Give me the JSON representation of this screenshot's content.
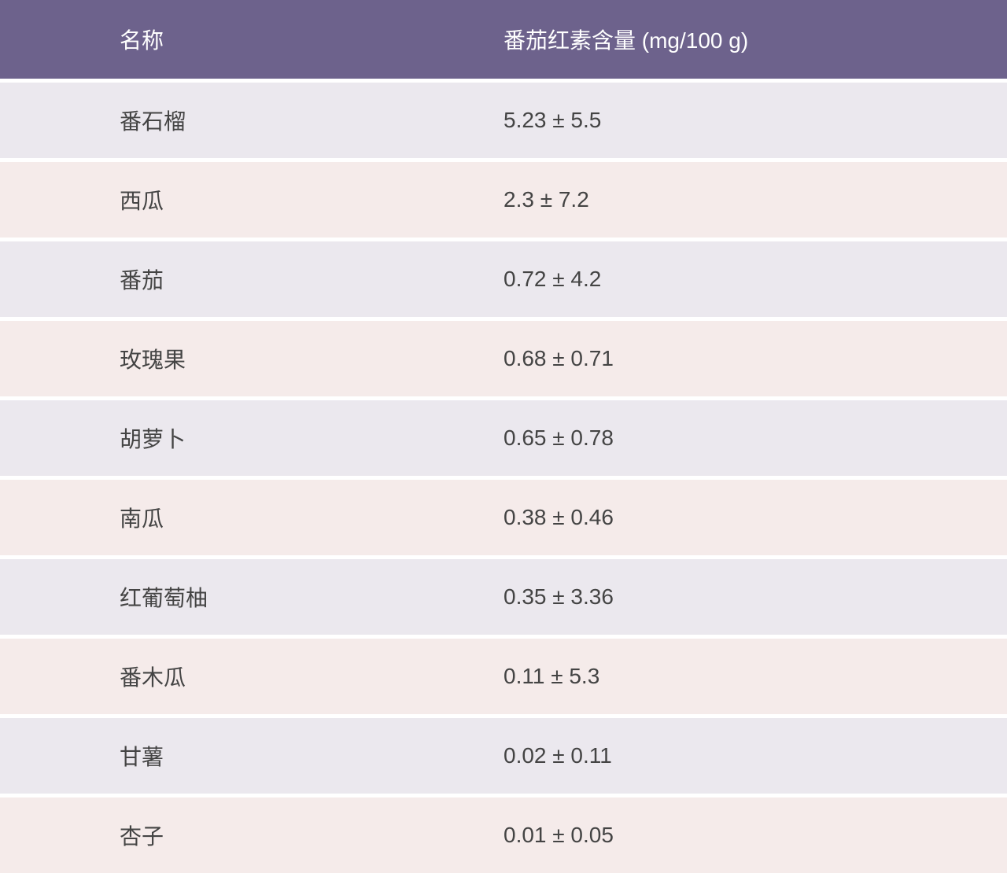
{
  "table": {
    "header_bg": "#6d628c",
    "header_text_color": "#ffffff",
    "row_odd_bg": "#ebe8ee",
    "row_even_bg": "#f5ebea",
    "cell_text_color": "#444444",
    "font_size": 28,
    "columns": [
      {
        "key": "name",
        "label": "名称"
      },
      {
        "key": "value",
        "label": "番茄红素含量 (mg/100 g)"
      }
    ],
    "rows": [
      {
        "name": "番石榴",
        "value": "5.23 ± 5.5"
      },
      {
        "name": "西瓜",
        "value": "2.3 ± 7.2"
      },
      {
        "name": "番茄",
        "value": "0.72 ± 4.2"
      },
      {
        "name": "玫瑰果",
        "value": "0.68 ± 0.71"
      },
      {
        "name": "胡萝卜",
        "value": "0.65 ± 0.78"
      },
      {
        "name": "南瓜",
        "value": "0.38 ± 0.46"
      },
      {
        "name": "红葡萄柚",
        "value": "0.35 ± 3.36"
      },
      {
        "name": "番木瓜",
        "value": "0.11 ± 5.3"
      },
      {
        "name": "甘薯",
        "value": "0.02 ± 0.11"
      },
      {
        "name": "杏子",
        "value": "0.01 ± 0.05"
      }
    ]
  }
}
